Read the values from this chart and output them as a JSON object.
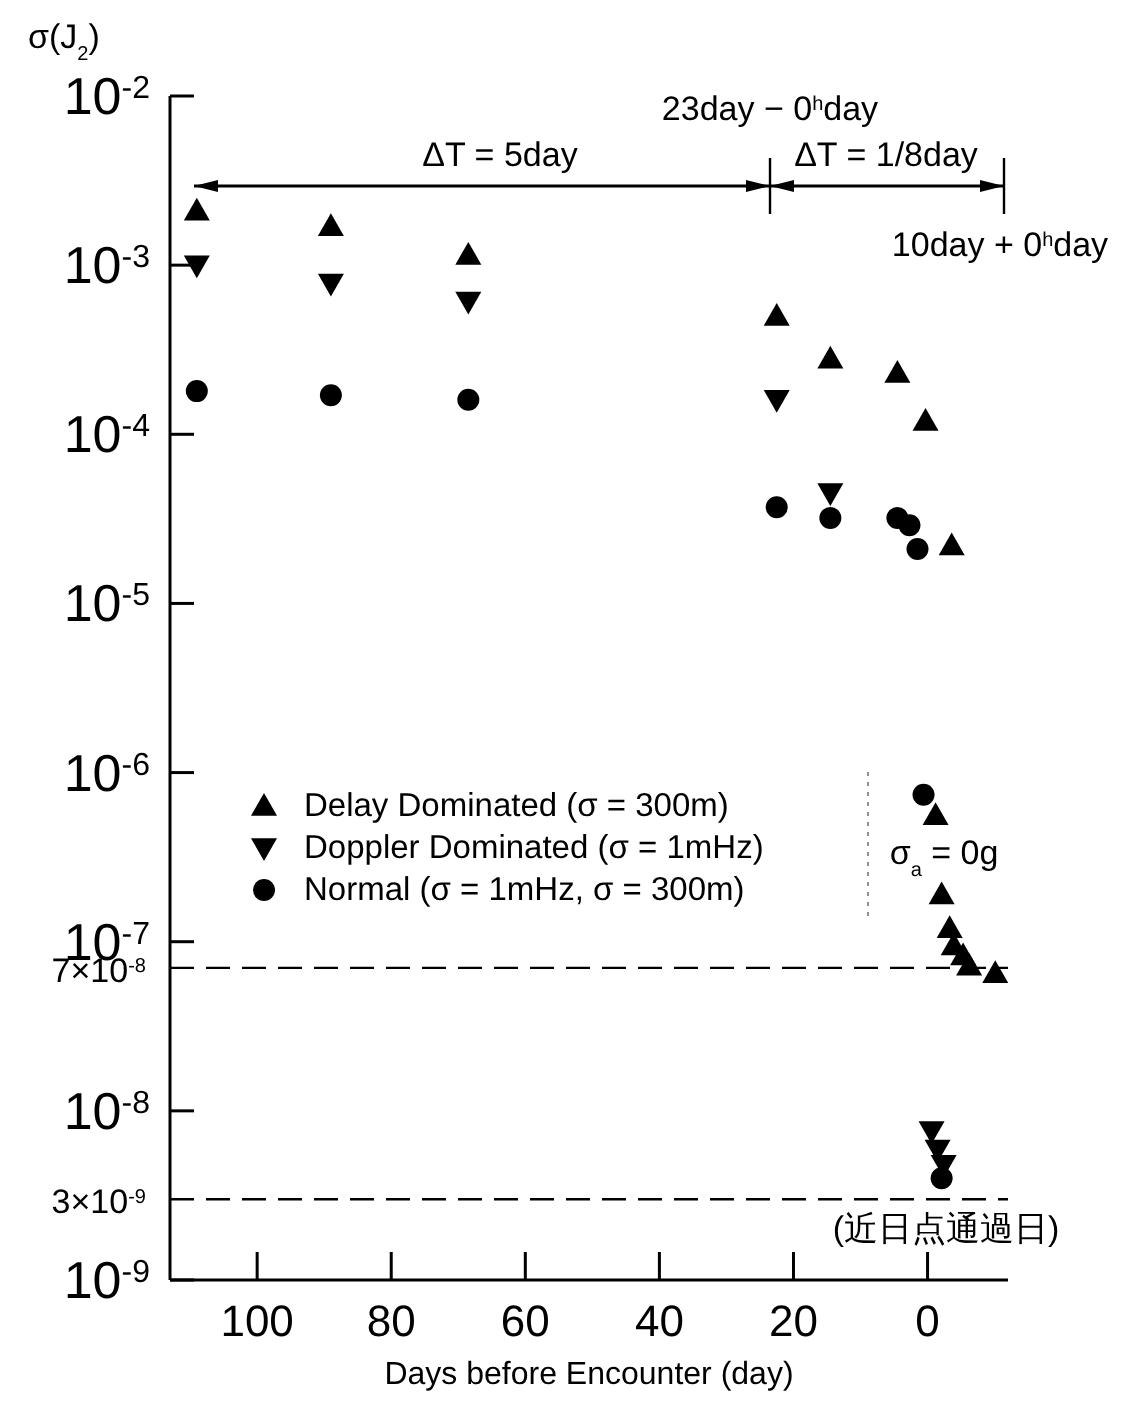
{
  "chart_data": {
    "type": "scatter",
    "ylabel": "σ(J$_{2}$)",
    "xlabel": "Days before Encounter (day)",
    "series": [
      {
        "name": "Delay Dominated (σ = 300m)",
        "color": "#000000",
        "marker": "triangle",
        "x": [
          109,
          89,
          68.5,
          22.5,
          14.5,
          4.5,
          0.3,
          -3.6,
          -1.2,
          -2.1,
          -3.3,
          -3.9,
          -5.3,
          -6.2,
          -10.1
        ],
        "values": [
          0.0021,
          0.0017,
          0.00115,
          0.0005,
          0.00028,
          0.00023,
          0.00012,
          2.2e-05,
          5.6e-07,
          1.9e-07,
          1.2e-07,
          9.5e-08,
          8.3e-08,
          7.2e-08,
          6.5e-08
        ]
      },
      {
        "name": "Doppler Dominated (σ = 1mHz)",
        "color": "#000000",
        "marker": "triangle-down",
        "x": [
          109,
          89,
          68.5,
          22.5,
          14.5,
          -0.6,
          -1.5,
          -2.4
        ],
        "values": [
          0.001,
          0.00078,
          0.00061,
          0.00016,
          4.5e-05,
          7.6e-09,
          5.9e-09,
          4.8e-09
        ]
      },
      {
        "name": "Normal (σ = 1mHz, σ = 300m)",
        "color": "#000000",
        "marker": "circle",
        "x": [
          109,
          89,
          68.5,
          22.5,
          14.5,
          4.5,
          2.7,
          1.5,
          0.6,
          -2.1
        ],
        "values": [
          0.00018,
          0.00017,
          0.00016,
          3.7e-05,
          3.2e-05,
          3.2e-05,
          2.9e-05,
          2.1e-05,
          7.4e-07,
          4e-09
        ]
      }
    ],
    "xlim": [
      113,
      -12
    ],
    "xticks": [
      100,
      80,
      60,
      40,
      20,
      0
    ],
    "ylim": [
      1e-09,
      0.01
    ],
    "log": "y",
    "yticks": [
      {
        "value": 0.01,
        "label": "10$^{-2}$"
      },
      {
        "value": 0.001,
        "label": "10$^{-3}$"
      },
      {
        "value": 0.0001,
        "label": "10$^{-4}$"
      },
      {
        "value": 1e-05,
        "label": "10$^{-5}$"
      },
      {
        "value": 1e-06,
        "label": "10$^{-6}$"
      },
      {
        "value": 1e-07,
        "label": "10$^{-7}$"
      },
      {
        "value": 1e-08,
        "label": "10$^{-8}$"
      },
      {
        "value": 1e-09,
        "label": "10$^{-9}$"
      }
    ],
    "ref_lines": [
      {
        "axis": "y",
        "value": 7e-08,
        "label": "7×10$^{-8}$",
        "line_style": "dashed",
        "color": "#000000"
      },
      {
        "axis": "y",
        "value": 3e-09,
        "label": "3×10$^{-9}$",
        "line_style": "dashed",
        "color": "#000000"
      }
    ],
    "annotations": [
      "ΔT = 5day",
      "ΔT = 1/8day",
      "23day − 0$^{h}$day",
      "10day + 0$^{h}$day",
      "σ$_{a}$ = 0g",
      "(近日点通過日)"
    ],
    "legend": "left",
    "grid": false
  }
}
